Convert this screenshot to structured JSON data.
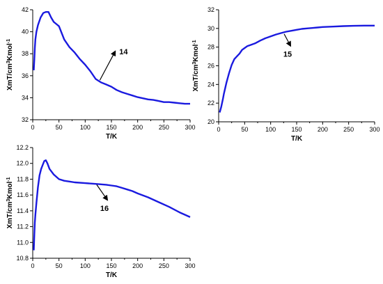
{
  "chart_data": [
    {
      "type": "line",
      "xlabel": "T/K",
      "ylabel_parts": {
        "pre": "XmT/cm",
        "sup1": "3",
        "mid": "Kmol",
        "sup2": "-1"
      },
      "xlim": [
        0,
        300
      ],
      "ylim": [
        32,
        42
      ],
      "xticks": [
        0,
        50,
        100,
        150,
        200,
        250,
        300
      ],
      "yticks": [
        32,
        34,
        36,
        38,
        40,
        42
      ],
      "grid": false,
      "series_color": "#1a1adf",
      "series": [
        {
          "x": [
            2,
            3,
            4,
            5,
            7,
            10,
            15,
            20,
            25,
            30,
            35,
            40,
            45,
            50,
            60,
            70,
            80,
            90,
            100,
            110,
            120,
            130,
            140,
            150,
            160,
            170,
            180,
            190,
            200,
            210,
            220,
            230,
            240,
            250,
            260,
            270,
            280,
            290,
            300
          ],
          "y": [
            36.5,
            37.5,
            38.5,
            39.3,
            40.0,
            40.6,
            41.3,
            41.7,
            41.8,
            41.8,
            41.3,
            40.9,
            40.7,
            40.5,
            39.3,
            38.6,
            38.1,
            37.5,
            37.0,
            36.4,
            35.7,
            35.4,
            35.2,
            35.0,
            34.7,
            34.5,
            34.35,
            34.2,
            34.05,
            33.95,
            33.85,
            33.8,
            33.7,
            33.6,
            33.6,
            33.55,
            33.5,
            33.45,
            33.45
          ]
        }
      ],
      "annotation": {
        "label": "14",
        "arrow_from": [
          128,
          35.6
        ],
        "arrow_to": [
          157,
          38.2
        ]
      }
    },
    {
      "type": "line",
      "xlabel": "T/K",
      "ylabel_parts": {
        "pre": "XmT/cm",
        "sup1": "3",
        "mid": "Kmol",
        "sup2": "-1"
      },
      "xlim": [
        0,
        300
      ],
      "ylim": [
        20,
        32
      ],
      "xticks": [
        0,
        50,
        100,
        150,
        200,
        250,
        300
      ],
      "yticks": [
        20,
        22,
        24,
        26,
        28,
        30,
        32
      ],
      "grid": false,
      "series_color": "#1a1adf",
      "series": [
        {
          "x": [
            2,
            5,
            8,
            10,
            15,
            20,
            25,
            30,
            35,
            40,
            45,
            50,
            55,
            60,
            70,
            80,
            90,
            100,
            110,
            120,
            130,
            140,
            150,
            160,
            170,
            180,
            190,
            200,
            220,
            240,
            260,
            280,
            300
          ],
          "y": [
            21.0,
            21.6,
            22.4,
            23.0,
            24.2,
            25.2,
            26.1,
            26.7,
            27.0,
            27.3,
            27.7,
            27.9,
            28.1,
            28.2,
            28.4,
            28.7,
            28.95,
            29.15,
            29.35,
            29.5,
            29.65,
            29.75,
            29.85,
            29.95,
            30.0,
            30.05,
            30.1,
            30.15,
            30.2,
            30.25,
            30.28,
            30.3,
            30.3
          ]
        }
      ],
      "annotation": {
        "label": "15",
        "arrow_from": [
          126,
          29.4
        ],
        "arrow_to": [
          138,
          28.15
        ]
      }
    },
    {
      "type": "line",
      "xlabel": "T/K",
      "ylabel_parts": {
        "pre": "XmT/cm",
        "sup1": "3",
        "mid": "Kmol",
        "sup2": "-1"
      },
      "xlim": [
        0,
        300
      ],
      "ylim": [
        10.8,
        12.2
      ],
      "xticks": [
        0,
        50,
        100,
        150,
        200,
        250,
        300
      ],
      "yticks": [
        10.8,
        11.0,
        11.2,
        11.4,
        11.6,
        11.8,
        12.0,
        12.2
      ],
      "grid": false,
      "series_color": "#1a1adf",
      "series": [
        {
          "x": [
            2,
            3,
            4,
            5,
            7,
            10,
            13,
            16,
            19,
            22,
            25,
            28,
            32,
            40,
            50,
            60,
            70,
            80,
            100,
            120,
            140,
            150,
            160,
            170,
            180,
            190,
            200,
            220,
            240,
            260,
            280,
            290,
            300
          ],
          "y": [
            10.9,
            11.1,
            11.25,
            11.35,
            11.5,
            11.7,
            11.85,
            11.93,
            11.98,
            12.03,
            12.04,
            12.0,
            11.93,
            11.86,
            11.8,
            11.78,
            11.77,
            11.76,
            11.75,
            11.74,
            11.73,
            11.72,
            11.71,
            11.69,
            11.67,
            11.65,
            11.62,
            11.57,
            11.51,
            11.45,
            11.38,
            11.35,
            11.32
          ]
        }
      ],
      "annotation": {
        "label": "16",
        "arrow_from": [
          122,
          11.73
        ],
        "arrow_to": [
          142,
          11.54
        ]
      }
    }
  ]
}
